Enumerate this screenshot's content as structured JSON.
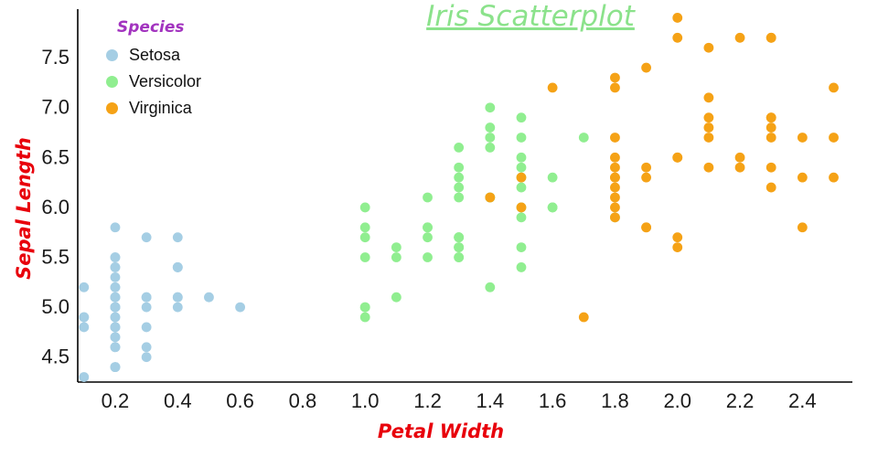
{
  "title": "Iris Scatterplot",
  "legend": {
    "title": "Species",
    "items": [
      {
        "label": "Setosa",
        "color": "#A5CEE4"
      },
      {
        "label": "Versicolor",
        "color": "#90EE90"
      },
      {
        "label": "Virginica",
        "color": "#F5A216"
      }
    ]
  },
  "colors": {
    "title": "#8BE28B",
    "legend_title": "#A233BF",
    "axis_label": "#E8000B",
    "axis_line": "#000000",
    "tick_text": "#1a1a1a"
  },
  "chart_data": {
    "type": "scatter",
    "title": "Iris Scatterplot",
    "xlabel": "Petal Width",
    "ylabel": "Sepal Length",
    "xlim": [
      0.08,
      2.56
    ],
    "ylim": [
      4.25,
      7.95
    ],
    "xticks": [
      0.2,
      0.4,
      0.6,
      0.8,
      1.0,
      1.2,
      1.4,
      1.6,
      1.8,
      2.0,
      2.2,
      2.4
    ],
    "yticks": [
      4.5,
      5.0,
      5.5,
      6.0,
      6.5,
      7.0,
      7.5
    ],
    "grid": false,
    "legend_position": "top-left",
    "series": [
      {
        "name": "Setosa",
        "color": "#A5CEE4",
        "points": [
          [
            0.2,
            5.1
          ],
          [
            0.2,
            4.9
          ],
          [
            0.2,
            4.7
          ],
          [
            0.2,
            4.6
          ],
          [
            0.2,
            5.0
          ],
          [
            0.4,
            5.4
          ],
          [
            0.3,
            4.6
          ],
          [
            0.2,
            5.0
          ],
          [
            0.2,
            4.4
          ],
          [
            0.1,
            4.9
          ],
          [
            0.2,
            5.4
          ],
          [
            0.2,
            4.8
          ],
          [
            0.1,
            4.8
          ],
          [
            0.1,
            4.3
          ],
          [
            0.2,
            5.8
          ],
          [
            0.4,
            5.7
          ],
          [
            0.4,
            5.4
          ],
          [
            0.3,
            5.1
          ],
          [
            0.3,
            5.7
          ],
          [
            0.3,
            5.1
          ],
          [
            0.2,
            5.4
          ],
          [
            0.4,
            5.1
          ],
          [
            0.2,
            4.6
          ],
          [
            0.5,
            5.1
          ],
          [
            0.2,
            4.8
          ],
          [
            0.2,
            5.0
          ],
          [
            0.4,
            5.0
          ],
          [
            0.2,
            5.2
          ],
          [
            0.2,
            5.2
          ],
          [
            0.2,
            4.7
          ],
          [
            0.2,
            4.8
          ],
          [
            0.4,
            5.4
          ],
          [
            0.1,
            5.2
          ],
          [
            0.2,
            5.5
          ],
          [
            0.2,
            4.9
          ],
          [
            0.2,
            5.0
          ],
          [
            0.2,
            5.5
          ],
          [
            0.1,
            4.9
          ],
          [
            0.2,
            4.4
          ],
          [
            0.2,
            5.1
          ],
          [
            0.3,
            5.0
          ],
          [
            0.3,
            4.5
          ],
          [
            0.2,
            4.4
          ],
          [
            0.6,
            5.0
          ],
          [
            0.4,
            5.1
          ],
          [
            0.3,
            4.8
          ],
          [
            0.2,
            5.1
          ],
          [
            0.2,
            4.6
          ],
          [
            0.2,
            5.3
          ],
          [
            0.2,
            5.0
          ]
        ]
      },
      {
        "name": "Versicolor",
        "color": "#90EE90",
        "points": [
          [
            1.4,
            7.0
          ],
          [
            1.5,
            6.4
          ],
          [
            1.5,
            6.9
          ],
          [
            1.3,
            5.5
          ],
          [
            1.5,
            6.5
          ],
          [
            1.3,
            5.7
          ],
          [
            1.6,
            6.3
          ],
          [
            1.0,
            4.9
          ],
          [
            1.3,
            6.6
          ],
          [
            1.4,
            5.2
          ],
          [
            1.0,
            5.0
          ],
          [
            1.5,
            5.9
          ],
          [
            1.0,
            6.0
          ],
          [
            1.4,
            6.1
          ],
          [
            1.3,
            5.6
          ],
          [
            1.4,
            6.7
          ],
          [
            1.5,
            5.6
          ],
          [
            1.0,
            5.8
          ],
          [
            1.5,
            6.2
          ],
          [
            1.1,
            5.6
          ],
          [
            1.8,
            5.9
          ],
          [
            1.3,
            6.1
          ],
          [
            1.5,
            6.3
          ],
          [
            1.2,
            6.1
          ],
          [
            1.3,
            6.4
          ],
          [
            1.4,
            6.6
          ],
          [
            1.4,
            6.8
          ],
          [
            1.7,
            6.7
          ],
          [
            1.5,
            6.0
          ],
          [
            1.0,
            5.7
          ],
          [
            1.1,
            5.5
          ],
          [
            1.0,
            5.5
          ],
          [
            1.2,
            5.8
          ],
          [
            1.6,
            6.0
          ],
          [
            1.5,
            5.4
          ],
          [
            1.6,
            6.0
          ],
          [
            1.5,
            6.7
          ],
          [
            1.3,
            6.3
          ],
          [
            1.3,
            5.6
          ],
          [
            1.3,
            5.5
          ],
          [
            1.2,
            5.5
          ],
          [
            1.4,
            6.1
          ],
          [
            1.2,
            5.8
          ],
          [
            1.0,
            5.0
          ],
          [
            1.3,
            5.6
          ],
          [
            1.2,
            5.7
          ],
          [
            1.3,
            5.7
          ],
          [
            1.3,
            6.2
          ],
          [
            1.1,
            5.1
          ],
          [
            1.3,
            5.7
          ]
        ]
      },
      {
        "name": "Virginica",
        "color": "#F5A216",
        "points": [
          [
            2.5,
            6.3
          ],
          [
            1.9,
            5.8
          ],
          [
            2.1,
            7.1
          ],
          [
            1.8,
            6.3
          ],
          [
            2.2,
            6.5
          ],
          [
            2.1,
            7.6
          ],
          [
            1.7,
            4.9
          ],
          [
            1.8,
            7.3
          ],
          [
            1.8,
            6.7
          ],
          [
            2.5,
            7.2
          ],
          [
            2.0,
            6.5
          ],
          [
            1.9,
            6.4
          ],
          [
            2.1,
            6.8
          ],
          [
            2.0,
            5.7
          ],
          [
            2.4,
            5.8
          ],
          [
            2.3,
            6.4
          ],
          [
            1.8,
            6.5
          ],
          [
            2.2,
            7.7
          ],
          [
            2.3,
            7.7
          ],
          [
            1.5,
            6.0
          ],
          [
            2.3,
            6.9
          ],
          [
            2.0,
            5.6
          ],
          [
            2.0,
            7.7
          ],
          [
            1.8,
            6.3
          ],
          [
            2.1,
            6.7
          ],
          [
            1.8,
            7.2
          ],
          [
            1.8,
            6.2
          ],
          [
            1.8,
            6.1
          ],
          [
            2.1,
            6.4
          ],
          [
            1.6,
            7.2
          ],
          [
            1.9,
            7.4
          ],
          [
            2.0,
            7.9
          ],
          [
            2.2,
            6.4
          ],
          [
            1.5,
            6.3
          ],
          [
            1.4,
            6.1
          ],
          [
            2.3,
            7.7
          ],
          [
            2.4,
            6.3
          ],
          [
            1.8,
            6.4
          ],
          [
            1.8,
            6.0
          ],
          [
            2.1,
            6.9
          ],
          [
            2.4,
            6.7
          ],
          [
            2.3,
            6.9
          ],
          [
            1.9,
            5.8
          ],
          [
            2.3,
            6.8
          ],
          [
            2.5,
            6.7
          ],
          [
            2.3,
            6.7
          ],
          [
            1.9,
            6.3
          ],
          [
            2.0,
            6.5
          ],
          [
            2.3,
            6.2
          ],
          [
            1.8,
            5.9
          ]
        ]
      }
    ]
  }
}
